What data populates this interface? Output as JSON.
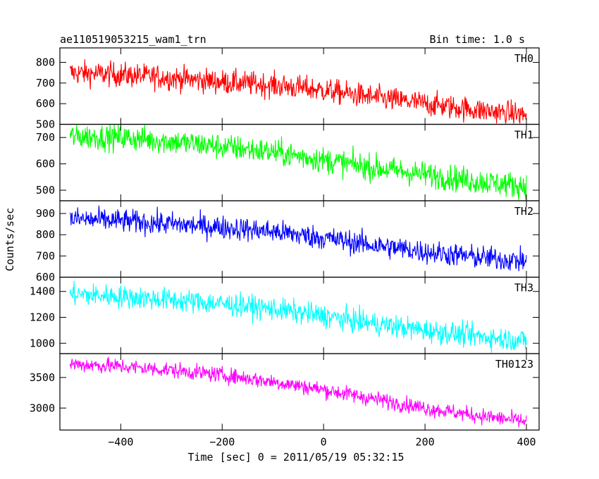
{
  "chart_data": {
    "type": "line",
    "title": "ae110519053215_wam1_trn",
    "subtitle": "Bin time: 1.0 s",
    "xlabel": "Time [sec] 0 = 2011/05/19 05:32:15",
    "ylabel": "Counts/sec",
    "xlim": [
      -520,
      425
    ],
    "xticks": [
      -400,
      -200,
      0,
      200,
      400
    ],
    "grid": false,
    "series": [
      {
        "name": "TH0",
        "color": "#ff0000",
        "ylim": [
          500,
          870
        ],
        "yticks": [
          500,
          600,
          700,
          800
        ],
        "x": [
          -500,
          -400,
          -300,
          -200,
          -100,
          0,
          100,
          200,
          300,
          400
        ],
        "values": [
          750,
          740,
          725,
          705,
          690,
          665,
          630,
          600,
          570,
          545
        ],
        "noise": 30
      },
      {
        "name": "TH1",
        "color": "#00ff00",
        "ylim": [
          460,
          750
        ],
        "yticks": [
          500,
          600,
          700
        ],
        "x": [
          -500,
          -400,
          -300,
          -200,
          -100,
          0,
          100,
          200,
          300,
          400
        ],
        "values": [
          705,
          700,
          685,
          665,
          645,
          615,
          585,
          560,
          535,
          515
        ],
        "noise": 25
      },
      {
        "name": "TH2",
        "color": "#0000ff",
        "ylim": [
          600,
          960
        ],
        "yticks": [
          600,
          700,
          800,
          900
        ],
        "x": [
          -500,
          -400,
          -300,
          -200,
          -100,
          0,
          100,
          200,
          300,
          400
        ],
        "values": [
          875,
          865,
          850,
          835,
          815,
          785,
          750,
          720,
          695,
          675
        ],
        "noise": 28
      },
      {
        "name": "TH3",
        "color": "#00ffff",
        "ylim": [
          920,
          1510
        ],
        "yticks": [
          1000,
          1200,
          1400
        ],
        "x": [
          -500,
          -400,
          -300,
          -200,
          -100,
          0,
          100,
          200,
          300,
          400
        ],
        "values": [
          1380,
          1360,
          1335,
          1305,
          1265,
          1210,
          1150,
          1100,
          1055,
          1020
        ],
        "noise": 45
      },
      {
        "name": "TH0123",
        "color": "#ff00ff",
        "ylim": [
          2640,
          3890
        ],
        "yticks": [
          3000,
          3500
        ],
        "x": [
          -500,
          -400,
          -300,
          -200,
          -100,
          0,
          100,
          200,
          300,
          400
        ],
        "values": [
          3720,
          3680,
          3620,
          3540,
          3430,
          3300,
          3150,
          3000,
          2880,
          2780
        ],
        "noise": 65
      }
    ]
  }
}
